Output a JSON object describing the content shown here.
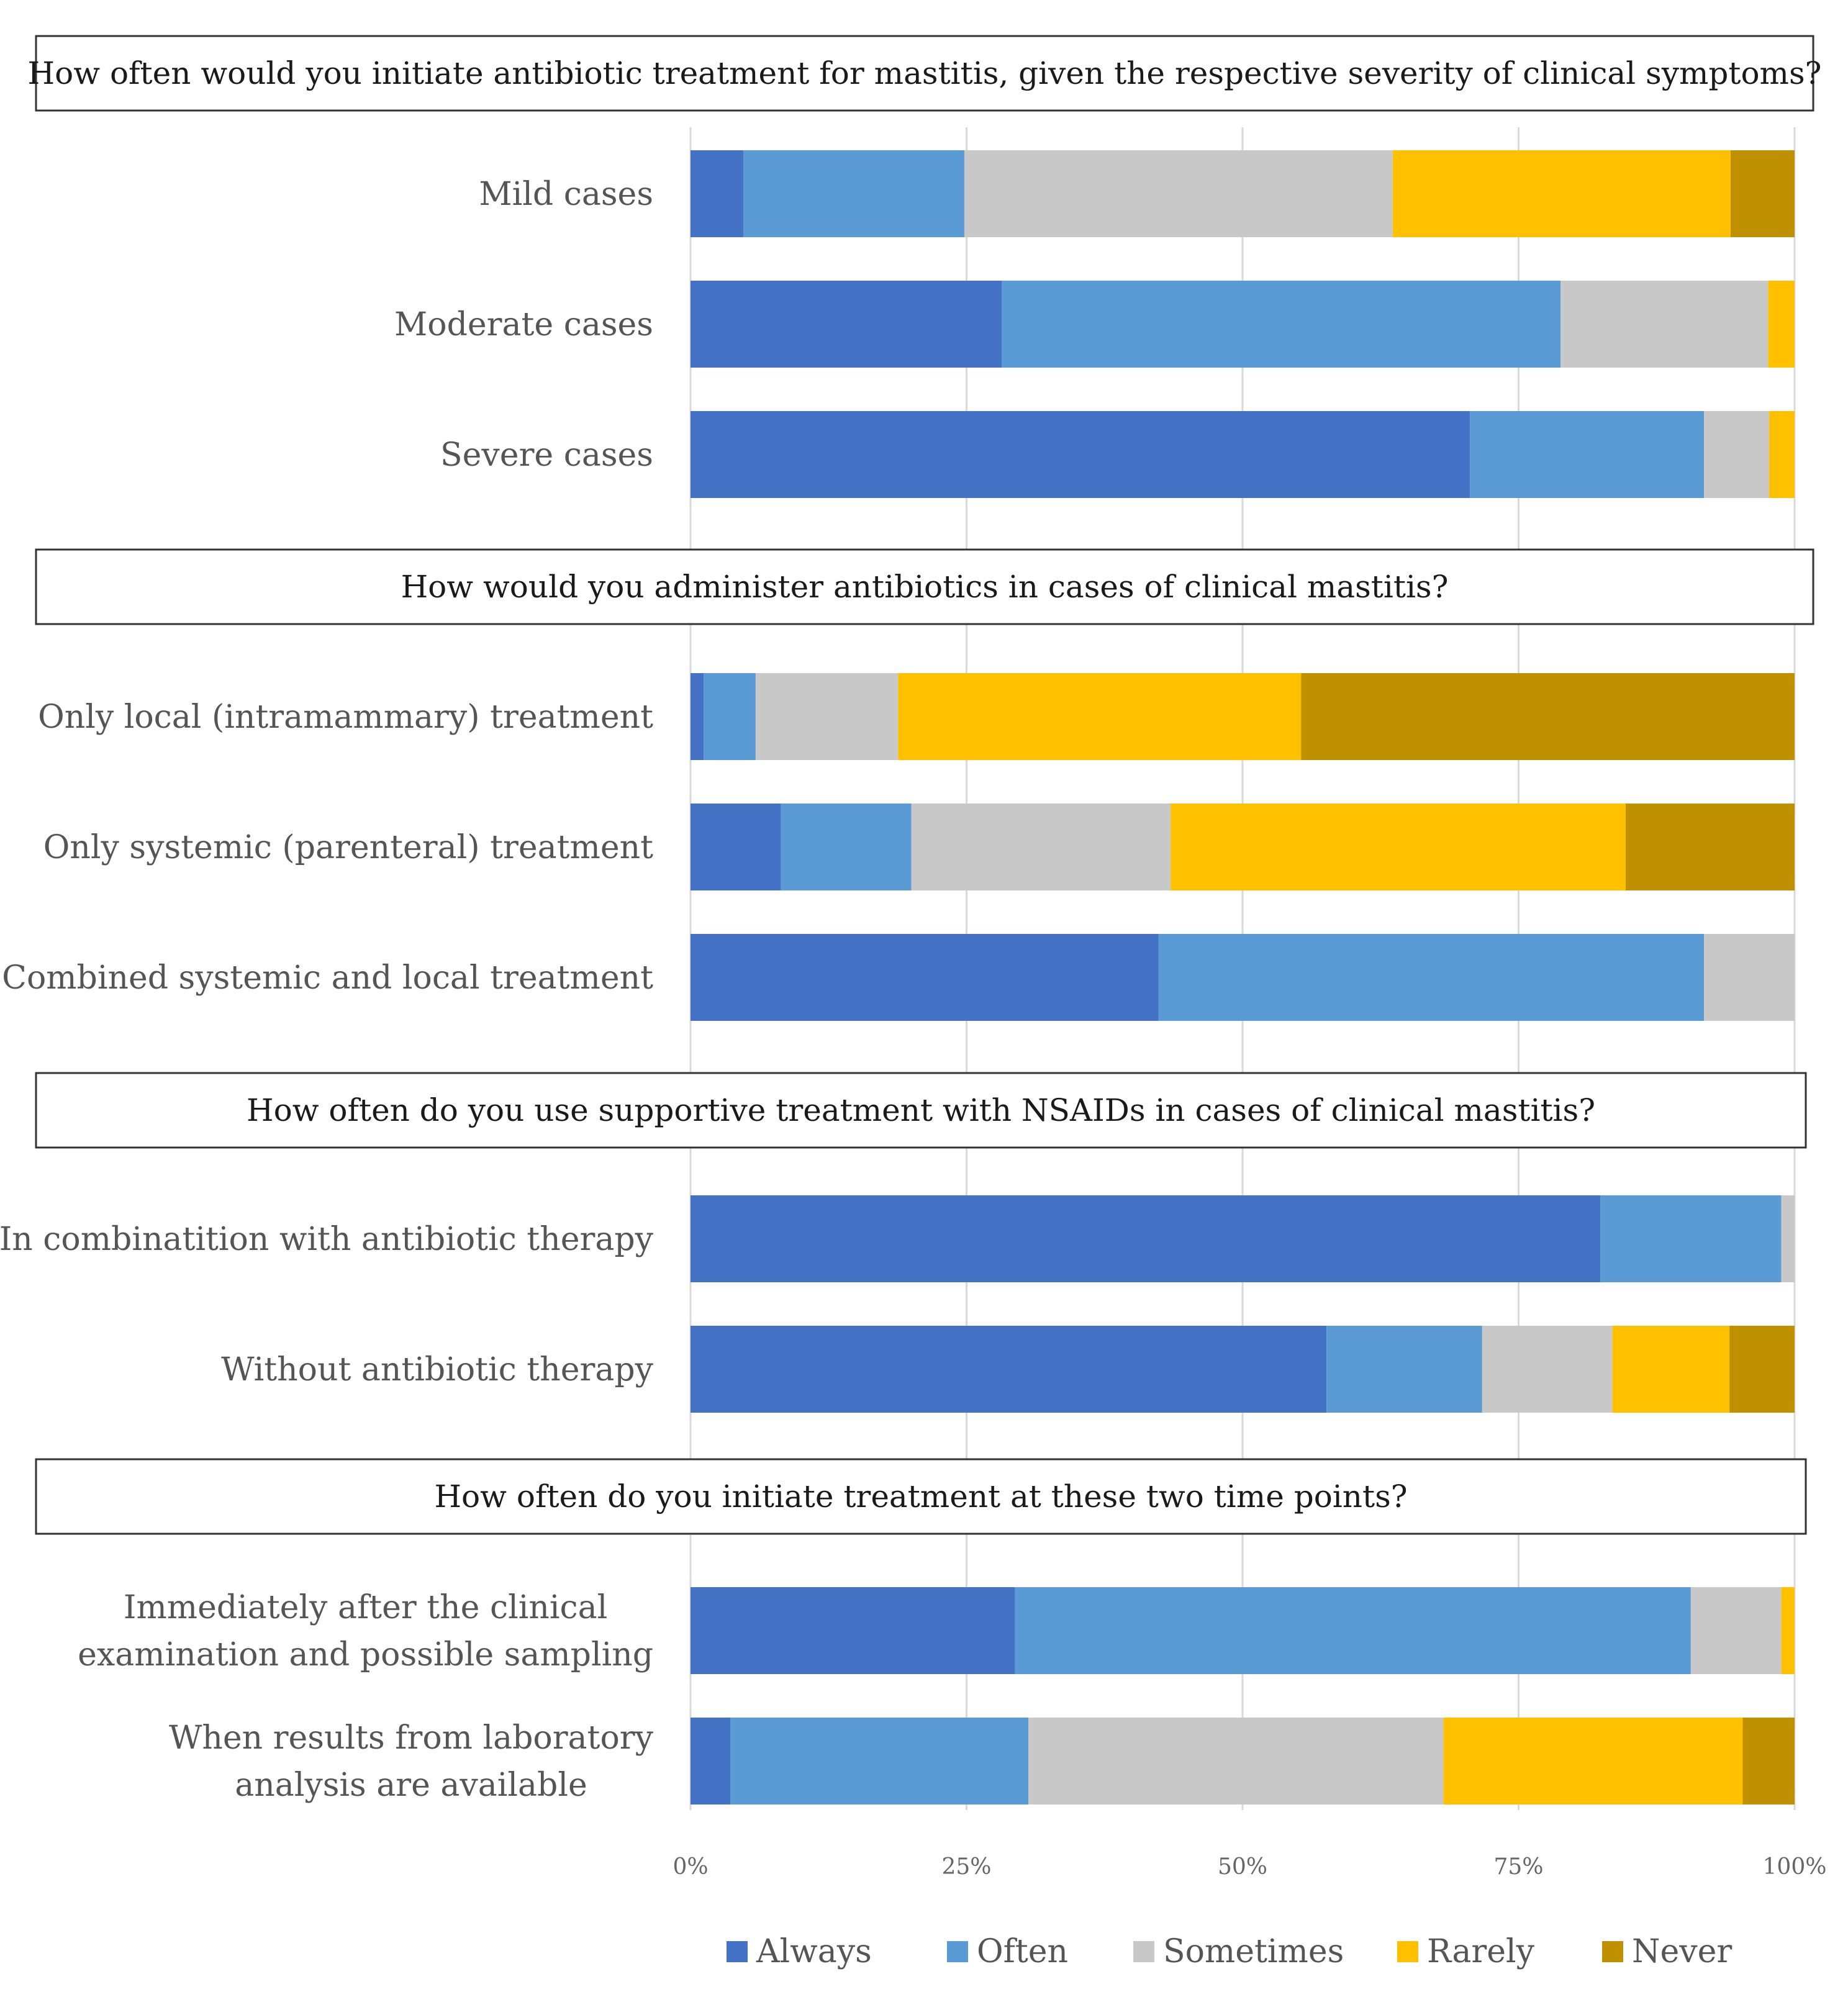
{
  "chart_data": {
    "type": "bar",
    "orientation": "horizontal",
    "stacked": true,
    "percent": true,
    "xlim": [
      0,
      100
    ],
    "ticks": [
      "0%",
      "25%",
      "50%",
      "75%",
      "100%"
    ],
    "grid": true,
    "legend_position": "bottom",
    "categories_legend": [
      "Always",
      "Often",
      "Sometimes",
      "Rarely",
      "Never"
    ],
    "colors": {
      "Always": "#4472C4",
      "Often": "#5B9BD5",
      "Sometimes": "#C8C8C8",
      "Rarely": "#FFC000",
      "Never": "#BF9000"
    },
    "groups": [
      {
        "title": "How often would you initiate antibiotic treatment for mastitis, given the respective severity of clinical symptoms?",
        "rows": [
          {
            "label": [
              "Mild cases"
            ],
            "values": [
              4.8,
              20.0,
              38.8,
              30.6,
              5.8
            ]
          },
          {
            "label": [
              "Moderate cases"
            ],
            "values": [
              28.2,
              50.6,
              18.8,
              2.4,
              0
            ]
          },
          {
            "label": [
              "Severe cases"
            ],
            "values": [
              70.6,
              21.2,
              5.9,
              2.3,
              0
            ]
          }
        ]
      },
      {
        "title": "How would you administer antibiotics in cases of clinical mastitis?",
        "rows": [
          {
            "label": [
              "Only local (intramammary) treatment"
            ],
            "values": [
              1.2,
              4.7,
              12.9,
              36.5,
              44.7
            ]
          },
          {
            "label": [
              "Only systemic (parenteral) treatment"
            ],
            "values": [
              8.2,
              11.8,
              23.5,
              41.2,
              15.3
            ]
          },
          {
            "label": [
              "Combined systemic and local treatment"
            ],
            "values": [
              42.4,
              49.4,
              8.2,
              0,
              0
            ]
          }
        ]
      },
      {
        "title": "How often do you use supportive treatment with NSAIDs in cases of clinical mastitis?",
        "rows": [
          {
            "label": [
              "In combinatition with antibiotic therapy"
            ],
            "values": [
              82.4,
              16.4,
              1.2,
              0,
              0
            ]
          },
          {
            "label": [
              "Without antibiotic therapy"
            ],
            "values": [
              57.6,
              14.1,
              11.8,
              10.6,
              5.9
            ]
          }
        ]
      },
      {
        "title": "How often do you initiate treatment at these two time points?",
        "rows": [
          {
            "label": [
              "Immediately after the clinical",
              "examination and possible sampling"
            ],
            "values": [
              29.4,
              61.2,
              8.2,
              1.2,
              0
            ]
          },
          {
            "label": [
              "When results from laboratory",
              "analysis are available"
            ],
            "values": [
              3.6,
              27.0,
              37.6,
              27.1,
              4.7
            ]
          }
        ]
      }
    ]
  }
}
